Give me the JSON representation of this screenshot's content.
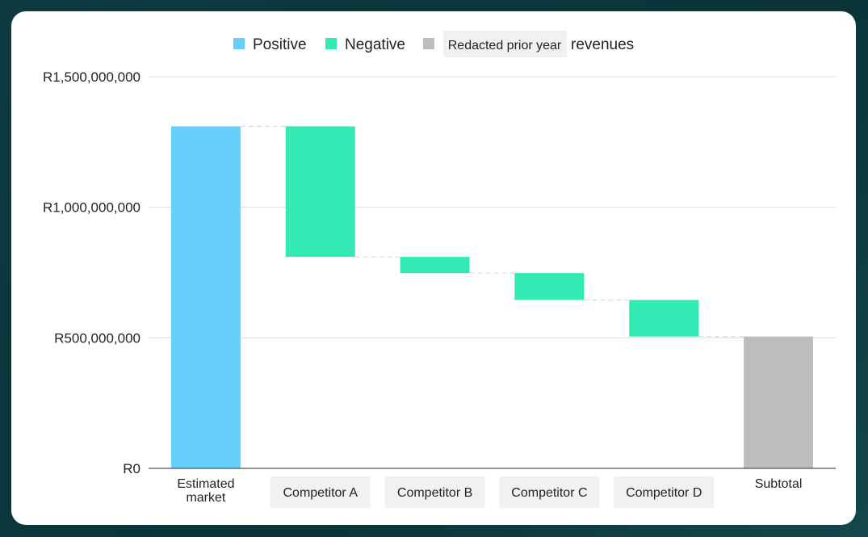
{
  "chart_data": {
    "type": "waterfall",
    "title": "",
    "xlabel": "",
    "ylabel": "",
    "ylim": [
      0,
      1500000000
    ],
    "grid": true,
    "legend_position": "top-center",
    "legend": [
      {
        "key": "positive",
        "label": "Positive",
        "color": "#66d0fb"
      },
      {
        "key": "negative",
        "label": "Negative",
        "color": "#33e9b4"
      },
      {
        "key": "subtotal",
        "label": "Redacted prior year",
        "suffix": "revenues",
        "color": "#bdbdbd"
      }
    ],
    "y_ticks": [
      {
        "value": 0,
        "label": "R0"
      },
      {
        "value": 500000000,
        "label": "R500,000,000"
      },
      {
        "value": 1000000000,
        "label": "R1,000,000,000"
      },
      {
        "value": 1500000000,
        "label": "R1,500,000,000"
      }
    ],
    "categories": [
      {
        "label": [
          "Estimated",
          "market"
        ],
        "boxed": false
      },
      {
        "label": [
          "Competitor A"
        ],
        "boxed": true
      },
      {
        "label": [
          "Competitor B"
        ],
        "boxed": true
      },
      {
        "label": [
          "Competitor C"
        ],
        "boxed": true
      },
      {
        "label": [
          "Competitor D"
        ],
        "boxed": true
      },
      {
        "label": [
          "Subtotal"
        ],
        "boxed": false
      }
    ],
    "bars": [
      {
        "kind": "positive",
        "start": 0,
        "end": 1310000000
      },
      {
        "kind": "negative",
        "start": 1310000000,
        "end": 810000000
      },
      {
        "kind": "negative",
        "start": 810000000,
        "end": 748000000
      },
      {
        "kind": "negative",
        "start": 748000000,
        "end": 645000000
      },
      {
        "kind": "negative",
        "start": 645000000,
        "end": 505000000
      },
      {
        "kind": "subtotal",
        "start": 0,
        "end": 505000000
      }
    ],
    "colors": {
      "positive": "#66d0fb",
      "negative": "#33e9b4",
      "subtotal": "#bdbdbd",
      "grid": "#dddddd",
      "axis": "#555555",
      "connector": "#d6d6d6",
      "text": "#222222",
      "label_box": "#f1f1f1"
    }
  }
}
